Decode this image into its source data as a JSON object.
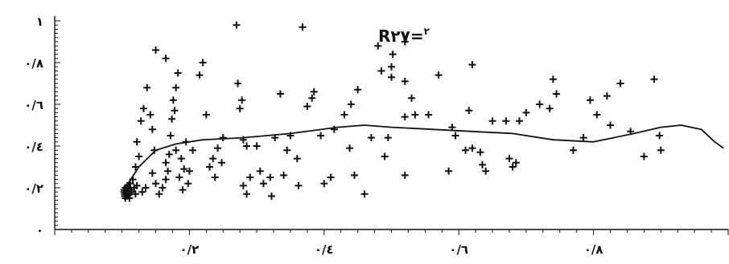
{
  "chart_data": {
    "type": "scatter",
    "title": "",
    "xlabel": "",
    "ylabel": "",
    "xlim": [
      0,
      1
    ],
    "ylim": [
      0,
      1
    ],
    "x_ticks": [
      {
        "value": 0.2,
        "label": "٠/٢"
      },
      {
        "value": 0.4,
        "label": "٠/٤"
      },
      {
        "value": 0.6,
        "label": "٠/٦"
      },
      {
        "value": 0.8,
        "label": "٠/٨"
      }
    ],
    "y_ticks": [
      {
        "value": 0.0,
        "label": "٠"
      },
      {
        "value": 0.2,
        "label": "٠/٢"
      },
      {
        "value": 0.4,
        "label": "٠/٤"
      },
      {
        "value": 0.6,
        "label": "٠/٦"
      },
      {
        "value": 0.8,
        "label": "٠/٨"
      },
      {
        "value": 1.0,
        "label": "١"
      }
    ],
    "annotation": {
      "base": "R",
      "superscript": "٢",
      "value": "=٢٧"
    },
    "marker": "+",
    "color": "#111111",
    "grid": false,
    "points": [
      [
        0.103,
        0.18
      ],
      [
        0.103,
        0.19
      ],
      [
        0.104,
        0.17
      ],
      [
        0.104,
        0.16
      ],
      [
        0.105,
        0.2
      ],
      [
        0.105,
        0.15
      ],
      [
        0.106,
        0.17
      ],
      [
        0.106,
        0.19
      ],
      [
        0.107,
        0.18
      ],
      [
        0.108,
        0.16
      ],
      [
        0.108,
        0.21
      ],
      [
        0.109,
        0.17
      ],
      [
        0.11,
        0.2
      ],
      [
        0.111,
        0.15
      ],
      [
        0.112,
        0.22
      ],
      [
        0.113,
        0.19
      ],
      [
        0.114,
        0.18
      ],
      [
        0.116,
        0.24
      ],
      [
        0.118,
        0.2
      ],
      [
        0.12,
        0.17
      ],
      [
        0.122,
        0.21
      ],
      [
        0.13,
        0.18
      ],
      [
        0.135,
        0.2
      ],
      [
        0.12,
        0.3
      ],
      [
        0.125,
        0.35
      ],
      [
        0.122,
        0.42
      ],
      [
        0.128,
        0.52
      ],
      [
        0.132,
        0.58
      ],
      [
        0.137,
        0.68
      ],
      [
        0.142,
        0.55
      ],
      [
        0.145,
        0.48
      ],
      [
        0.148,
        0.38
      ],
      [
        0.145,
        0.27
      ],
      [
        0.15,
        0.22
      ],
      [
        0.155,
        0.17
      ],
      [
        0.16,
        0.2
      ],
      [
        0.165,
        0.32
      ],
      [
        0.168,
        0.28
      ],
      [
        0.172,
        0.45
      ],
      [
        0.174,
        0.53
      ],
      [
        0.178,
        0.57
      ],
      [
        0.176,
        0.62
      ],
      [
        0.18,
        0.38
      ],
      [
        0.185,
        0.25
      ],
      [
        0.188,
        0.34
      ],
      [
        0.19,
        0.19
      ],
      [
        0.192,
        0.29
      ],
      [
        0.165,
        0.24
      ],
      [
        0.17,
        0.36
      ],
      [
        0.15,
        0.86
      ],
      [
        0.165,
        0.82
      ],
      [
        0.18,
        0.68
      ],
      [
        0.183,
        0.75
      ],
      [
        0.195,
        0.42
      ],
      [
        0.2,
        0.28
      ],
      [
        0.215,
        0.74
      ],
      [
        0.22,
        0.8
      ],
      [
        0.225,
        0.55
      ],
      [
        0.205,
        0.38
      ],
      [
        0.198,
        0.22
      ],
      [
        0.23,
        0.3
      ],
      [
        0.235,
        0.34
      ],
      [
        0.238,
        0.25
      ],
      [
        0.242,
        0.39
      ],
      [
        0.248,
        0.32
      ],
      [
        0.25,
        0.44
      ],
      [
        0.27,
        0.98
      ],
      [
        0.272,
        0.7
      ],
      [
        0.275,
        0.58
      ],
      [
        0.278,
        0.62
      ],
      [
        0.28,
        0.43
      ],
      [
        0.285,
        0.4
      ],
      [
        0.28,
        0.21
      ],
      [
        0.285,
        0.17
      ],
      [
        0.29,
        0.25
      ],
      [
        0.3,
        0.4
      ],
      [
        0.305,
        0.28
      ],
      [
        0.31,
        0.22
      ],
      [
        0.32,
        0.25
      ],
      [
        0.322,
        0.16
      ],
      [
        0.327,
        0.44
      ],
      [
        0.335,
        0.65
      ],
      [
        0.34,
        0.26
      ],
      [
        0.345,
        0.38
      ],
      [
        0.35,
        0.45
      ],
      [
        0.36,
        0.34
      ],
      [
        0.362,
        0.21
      ],
      [
        0.368,
        0.97
      ],
      [
        0.375,
        0.59
      ],
      [
        0.382,
        0.63
      ],
      [
        0.385,
        0.66
      ],
      [
        0.395,
        0.45
      ],
      [
        0.4,
        0.22
      ],
      [
        0.41,
        0.25
      ],
      [
        0.415,
        0.48
      ],
      [
        0.43,
        0.55
      ],
      [
        0.438,
        0.39
      ],
      [
        0.44,
        0.6
      ],
      [
        0.445,
        0.26
      ],
      [
        0.45,
        0.67
      ],
      [
        0.46,
        0.17
      ],
      [
        0.47,
        0.44
      ],
      [
        0.48,
        0.88
      ],
      [
        0.485,
        0.76
      ],
      [
        0.49,
        0.35
      ],
      [
        0.495,
        0.44
      ],
      [
        0.52,
        0.54
      ],
      [
        0.5,
        0.73
      ],
      [
        0.5,
        0.78
      ],
      [
        0.502,
        0.84
      ],
      [
        0.52,
        0.26
      ],
      [
        0.53,
        0.63
      ],
      [
        0.52,
        0.9
      ],
      [
        0.52,
        0.71
      ],
      [
        0.535,
        0.55
      ],
      [
        0.555,
        0.55
      ],
      [
        0.57,
        0.74
      ],
      [
        0.585,
        0.28
      ],
      [
        0.59,
        0.49
      ],
      [
        0.595,
        0.45
      ],
      [
        0.61,
        0.38
      ],
      [
        0.615,
        0.57
      ],
      [
        0.62,
        0.39
      ],
      [
        0.62,
        0.79
      ],
      [
        0.632,
        0.37
      ],
      [
        0.635,
        0.31
      ],
      [
        0.64,
        0.28
      ],
      [
        0.65,
        0.52
      ],
      [
        0.67,
        0.52
      ],
      [
        0.675,
        0.34
      ],
      [
        0.68,
        0.3
      ],
      [
        0.685,
        0.32
      ],
      [
        0.69,
        0.52
      ],
      [
        0.7,
        0.56
      ],
      [
        0.72,
        0.6
      ],
      [
        0.735,
        0.58
      ],
      [
        0.74,
        0.72
      ],
      [
        0.745,
        0.65
      ],
      [
        0.77,
        0.38
      ],
      [
        0.785,
        0.44
      ],
      [
        0.795,
        0.62
      ],
      [
        0.805,
        0.55
      ],
      [
        0.82,
        0.64
      ],
      [
        0.825,
        0.5
      ],
      [
        0.84,
        0.7
      ],
      [
        0.855,
        0.47
      ],
      [
        0.875,
        0.35
      ],
      [
        0.89,
        0.72
      ],
      [
        0.898,
        0.45
      ],
      [
        0.9,
        0.38
      ]
    ],
    "trend_line": [
      [
        0.105,
        0.2
      ],
      [
        0.125,
        0.3
      ],
      [
        0.15,
        0.38
      ],
      [
        0.18,
        0.41
      ],
      [
        0.22,
        0.43
      ],
      [
        0.28,
        0.44
      ],
      [
        0.35,
        0.46
      ],
      [
        0.42,
        0.49
      ],
      [
        0.46,
        0.5
      ],
      [
        0.5,
        0.49
      ],
      [
        0.56,
        0.48
      ],
      [
        0.62,
        0.47
      ],
      [
        0.68,
        0.46
      ],
      [
        0.74,
        0.43
      ],
      [
        0.8,
        0.42
      ],
      [
        0.86,
        0.46
      ],
      [
        0.9,
        0.49
      ],
      [
        0.93,
        0.5
      ],
      [
        0.96,
        0.48
      ],
      [
        0.98,
        0.42
      ],
      [
        0.993,
        0.39
      ]
    ]
  }
}
